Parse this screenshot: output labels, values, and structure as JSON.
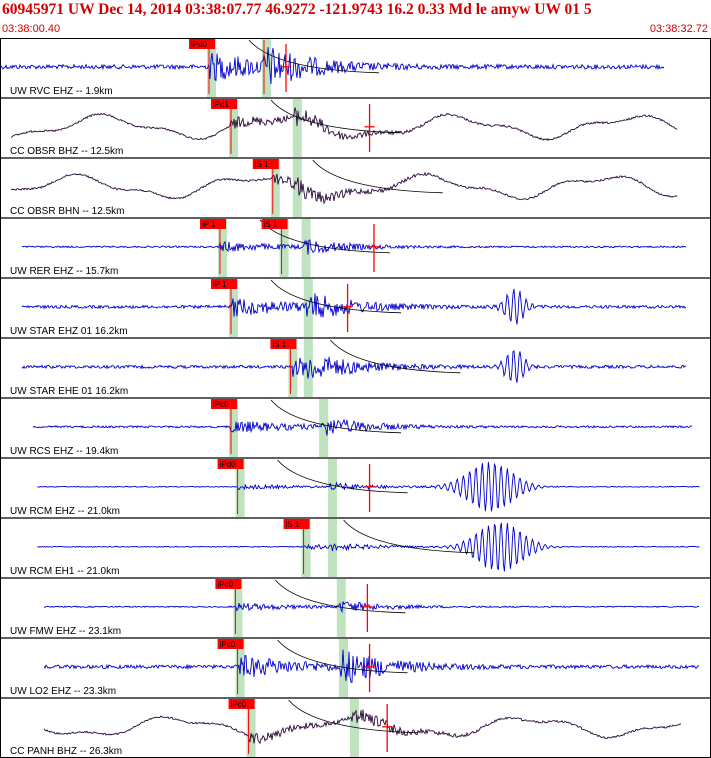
{
  "header": {
    "title": "60945971 UW Dec 14, 2014 03:38:07.77    46.9272 -121.9743 16.2 0.33 Md le amyw UW 01    5",
    "start_time": "03:38:00.40",
    "end_time": "03:38:32.72"
  },
  "colors": {
    "header_text": "#d40000",
    "trace_ehz": "#0000cc",
    "trace_bh": "#2a0a3a",
    "pick_box": "#ff0000",
    "pick_window": "#bfe3bf",
    "frame": "#000000"
  },
  "chart_data": {
    "type": "seismogram",
    "x_range": [
      "03:38:00.40",
      "03:38:32.72"
    ],
    "x_unit": "s",
    "x_span_s": 32.32,
    "traces": [
      {
        "label": "UW RVC EHZ -- 1.9km",
        "style": "ehz",
        "amp": 0.22,
        "picks": [
          {
            "label": "iPd0",
            "t": 9.5
          },
          {
            "label": "",
            "t": 12.0
          }
        ],
        "s_t": 12.0,
        "mark_t": 13.0,
        "seg": [
          0.0,
          30.2
        ]
      },
      {
        "label": "CC OBSR BHZ -- 12.5km",
        "style": "bh",
        "amp": 0.45,
        "picks": [
          {
            "label": "iPd1",
            "t": 10.5
          }
        ],
        "s_t": 13.4,
        "mark_t": 16.8,
        "seg": [
          0.5,
          30.8
        ]
      },
      {
        "label": "CC OBSR BHN -- 12.5km",
        "style": "bh",
        "amp": 0.45,
        "picks": [
          {
            "label": "iS 1",
            "t": 12.4
          }
        ],
        "s_t": 13.4,
        "mark_t": null,
        "seg": [
          0.5,
          30.8
        ]
      },
      {
        "label": "UW RER EHZ -- 15.7km",
        "style": "ehz",
        "amp": 0.08,
        "picks": [
          {
            "label": "iP 1",
            "t": 10.0
          },
          {
            "label": "iS 1",
            "t": 12.8
          }
        ],
        "s_t": 13.8,
        "mark_t": 17.0,
        "seg": [
          1.0,
          31.2
        ]
      },
      {
        "label": "UW STAR EHZ 01 16.2km",
        "style": "ehz",
        "amp": 0.15,
        "picks": [
          {
            "label": "iP 1",
            "t": 10.5
          }
        ],
        "s_t": 13.9,
        "mark_t": 15.8,
        "seg": [
          1.0,
          31.2
        ]
      },
      {
        "label": "UW STAR EHE 01 16.2km",
        "style": "ehz",
        "amp": 0.15,
        "picks": [
          {
            "label": "iS 1",
            "t": 13.2
          }
        ],
        "s_t": 13.9,
        "mark_t": null,
        "seg": [
          1.0,
          31.2
        ]
      },
      {
        "label": "UW RCS EHZ -- 19.4km",
        "style": "ehz",
        "amp": 0.1,
        "picks": [
          {
            "label": "iPc0",
            "t": 10.5
          }
        ],
        "s_t": 14.6,
        "mark_t": null,
        "seg": [
          1.5,
          31.5
        ]
      },
      {
        "label": "UW RCM EHZ -- 21.0km",
        "style": "ehz",
        "amp": 0.04,
        "picks": [
          {
            "label": "iPd0",
            "t": 10.8
          }
        ],
        "s_t": 15.0,
        "mark_t": 16.8,
        "seg": [
          1.7,
          31.8
        ]
      },
      {
        "label": "UW RCM EH1 -- 21.0km",
        "style": "ehz",
        "amp": 0.04,
        "picks": [
          {
            "label": "iS 1",
            "t": 13.8
          }
        ],
        "s_t": 15.0,
        "mark_t": null,
        "seg": [
          1.7,
          31.8
        ]
      },
      {
        "label": "UW FMW EHZ -- 23.1km",
        "style": "ehz",
        "amp": 0.06,
        "picks": [
          {
            "label": "iPc0",
            "t": 10.7
          }
        ],
        "s_t": 15.4,
        "mark_t": 16.7,
        "seg": [
          2.0,
          31.8
        ]
      },
      {
        "label": "UW LO2 EHZ -- 23.3km",
        "style": "ehz",
        "amp": 0.18,
        "picks": [
          {
            "label": "iPc0",
            "t": 10.8
          }
        ],
        "s_t": 15.5,
        "mark_t": 16.8,
        "seg": [
          2.0,
          31.8
        ]
      },
      {
        "label": "CC PANH BHZ -- 26.3km",
        "style": "bh",
        "amp": 0.4,
        "picks": [
          {
            "label": "iPc0",
            "t": 11.3
          }
        ],
        "s_t": 16.0,
        "mark_t": 17.6,
        "seg": [
          2.0,
          31.0
        ]
      }
    ]
  }
}
